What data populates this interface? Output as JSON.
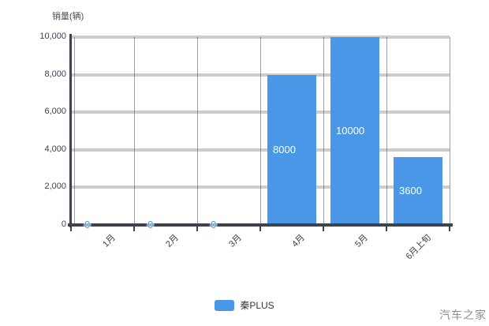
{
  "chart_data": {
    "type": "bar",
    "title": "",
    "xlabel": "",
    "ylabel": "销量(辆)",
    "categories": [
      "1月",
      "2月",
      "3月",
      "4月",
      "5月",
      "6月上旬"
    ],
    "values": [
      0,
      0,
      0,
      8000,
      10000,
      3600
    ],
    "value_labels": [
      "0",
      "0",
      "0",
      "8000",
      "10000",
      "3600"
    ],
    "ylim": [
      0,
      10000
    ],
    "yticks": [
      {
        "value": 0,
        "label": "0"
      },
      {
        "value": 2000,
        "label": "2,000"
      },
      {
        "value": 4000,
        "label": "4,000"
      },
      {
        "value": 6000,
        "label": "6,000"
      },
      {
        "value": 8000,
        "label": "8,000"
      },
      {
        "value": 10000,
        "label": "10,000"
      }
    ],
    "grid": true,
    "legend_position": "bottom",
    "legend": {
      "label": "秦PLUS"
    }
  },
  "watermark": "汽车之家",
  "colors": {
    "bar": "#4a97e8",
    "gridline": "#cccccc",
    "axis": "#3d424d",
    "bar_label": "#ffffff",
    "zero_label": "#4a97e8",
    "watermark": "#8f8f8f"
  }
}
